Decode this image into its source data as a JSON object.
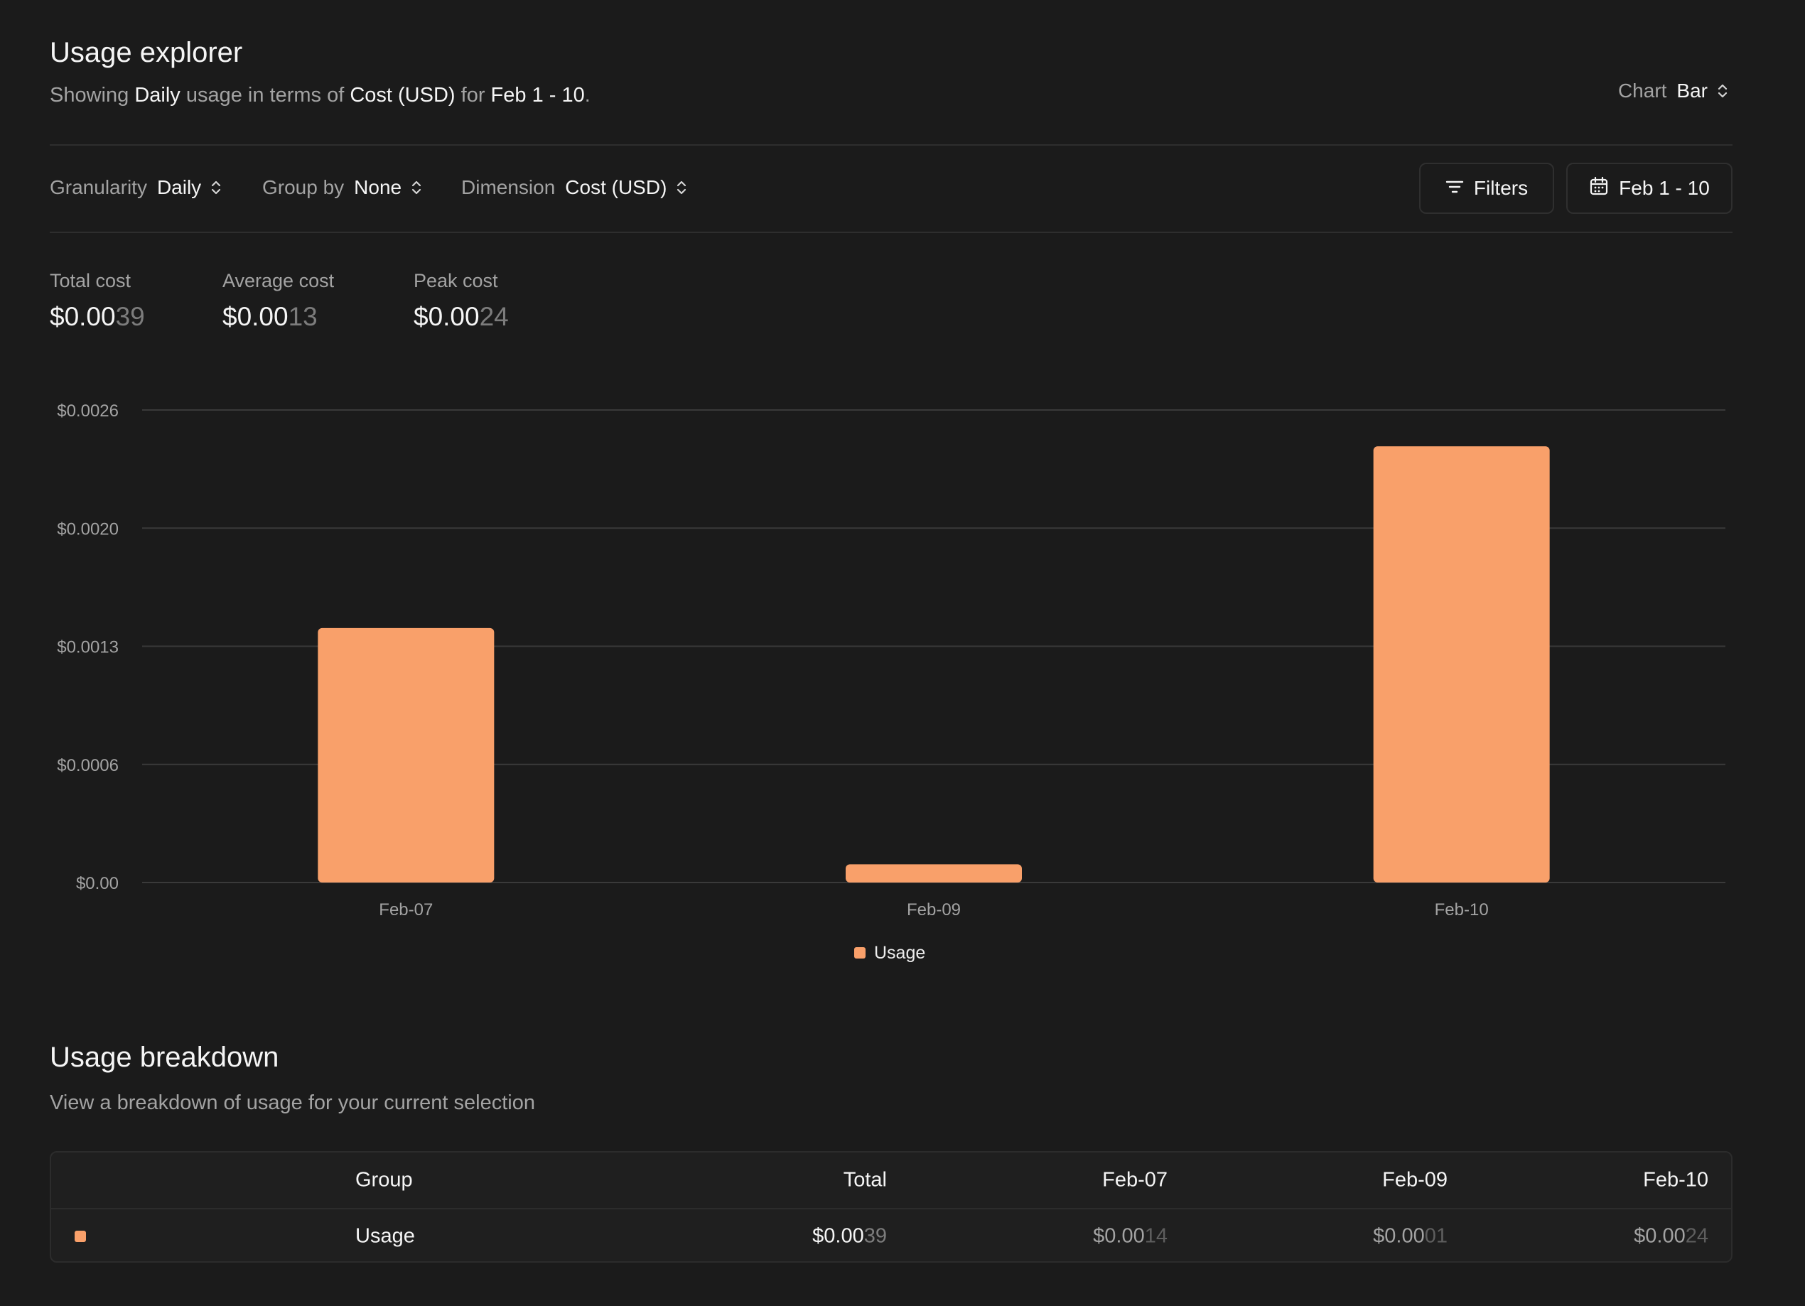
{
  "header": {
    "title": "Usage explorer",
    "subtitle_prefix": "Showing ",
    "subtitle_granularity": "Daily",
    "subtitle_mid1": " usage in terms of ",
    "subtitle_dimension": "Cost (USD)",
    "subtitle_mid2": " for ",
    "subtitle_range": "Feb 1 - 10",
    "subtitle_end": ".",
    "chart_label": "Chart",
    "chart_value": "Bar"
  },
  "toolbar": {
    "granularity_label": "Granularity",
    "granularity_value": "Daily",
    "groupby_label": "Group by",
    "groupby_value": "None",
    "dimension_label": "Dimension",
    "dimension_value": "Cost (USD)",
    "filters_label": "Filters",
    "date_label": "Feb 1 - 10"
  },
  "stats": [
    {
      "label": "Total cost",
      "value_main": "$0.00",
      "value_dim": "39"
    },
    {
      "label": "Average cost",
      "value_main": "$0.00",
      "value_dim": "13"
    },
    {
      "label": "Peak cost",
      "value_main": "$0.00",
      "value_dim": "24"
    }
  ],
  "colors": {
    "accent": "#f9a06a",
    "background": "#1b1b1b"
  },
  "chart_data": {
    "type": "bar",
    "categories": [
      "Feb-07",
      "Feb-09",
      "Feb-10"
    ],
    "series": [
      {
        "name": "Usage",
        "values": [
          0.0014,
          0.0001,
          0.0024
        ]
      }
    ],
    "y_ticks": [
      "$0.00",
      "$0.0006",
      "$0.0013",
      "$0.0020",
      "$0.0026"
    ],
    "y_tick_values": [
      0,
      0.00065,
      0.0013,
      0.00195,
      0.0026
    ],
    "ylim": [
      0,
      0.0026
    ],
    "grid": true,
    "legend": "bottom-center"
  },
  "breakdown": {
    "title": "Usage breakdown",
    "subtitle": "View a breakdown of usage for your current selection",
    "columns": [
      "Group",
      "Total",
      "Feb-07",
      "Feb-09",
      "Feb-10"
    ],
    "rows": [
      {
        "group": "Usage",
        "total_main": "$0.00",
        "total_dim": "39",
        "c1_main": "$0.00",
        "c1_dim": "14",
        "c2_main": "$0.00",
        "c2_dim": "01",
        "c3_main": "$0.00",
        "c3_dim": "24"
      }
    ]
  }
}
